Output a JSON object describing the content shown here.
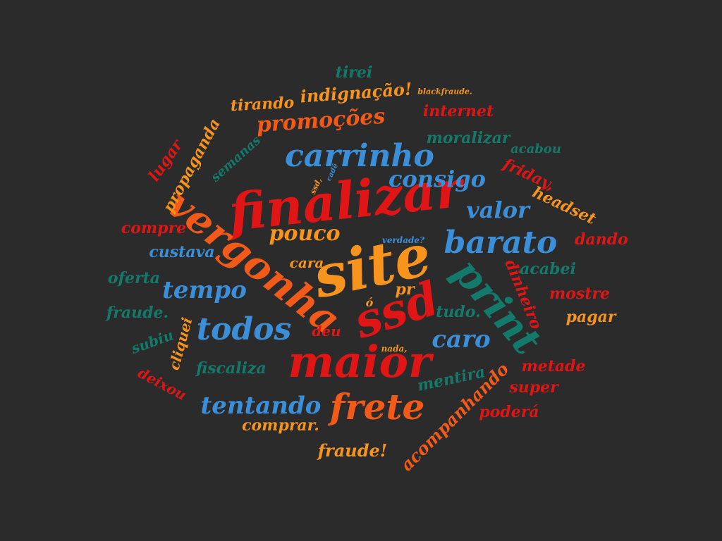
{
  "colors": {
    "background": "#2b2b2b",
    "red": "#e01515",
    "orange_red": "#f25a1a",
    "orange": "#f7941d",
    "blue": "#3b8fd9",
    "teal": "#137a6b"
  },
  "words": [
    {
      "text": "site",
      "color": "orange"
    },
    {
      "text": "finalizar",
      "color": "red"
    },
    {
      "text": "vergonha",
      "color": "orange_red"
    },
    {
      "text": "ssd",
      "color": "red"
    },
    {
      "text": "maior",
      "color": "red"
    },
    {
      "text": "print",
      "color": "teal"
    },
    {
      "text": "frete",
      "color": "orange_red"
    },
    {
      "text": "carrinho",
      "color": "blue"
    },
    {
      "text": "barato",
      "color": "blue"
    },
    {
      "text": "todos",
      "color": "blue"
    },
    {
      "text": "tentando",
      "color": "blue"
    },
    {
      "text": "promoções",
      "color": "orange_red"
    },
    {
      "text": "consigo",
      "color": "blue"
    },
    {
      "text": "valor",
      "color": "blue"
    },
    {
      "text": "tempo",
      "color": "blue"
    },
    {
      "text": "caro",
      "color": "blue"
    },
    {
      "text": "pouco",
      "color": "orange"
    },
    {
      "text": "indignação!",
      "color": "orange"
    },
    {
      "text": "tirando",
      "color": "orange"
    },
    {
      "text": "propaganda",
      "color": "orange"
    },
    {
      "text": "acompanhando",
      "color": "orange_red"
    },
    {
      "text": "dinheiro",
      "color": "red"
    },
    {
      "text": "comprar.",
      "color": "orange"
    },
    {
      "text": "fraude!",
      "color": "orange"
    },
    {
      "text": "fiscaliza",
      "color": "teal"
    },
    {
      "text": "mentira",
      "color": "teal"
    },
    {
      "text": "metade",
      "color": "red"
    },
    {
      "text": "internet",
      "color": "red"
    },
    {
      "text": "moralizar",
      "color": "teal"
    },
    {
      "text": "friday,",
      "color": "red"
    },
    {
      "text": "headset",
      "color": "orange"
    },
    {
      "text": "semanas",
      "color": "teal"
    },
    {
      "text": "lugar",
      "color": "red"
    },
    {
      "text": "compre",
      "color": "red"
    },
    {
      "text": "custava",
      "color": "blue"
    },
    {
      "text": "oferta",
      "color": "teal"
    },
    {
      "text": "fraude.",
      "color": "teal"
    },
    {
      "text": "subiu",
      "color": "teal"
    },
    {
      "text": "cliquei",
      "color": "orange"
    },
    {
      "text": "deixou",
      "color": "red"
    },
    {
      "text": "cara",
      "color": "orange"
    },
    {
      "text": "pr",
      "color": "orange"
    },
    {
      "text": "deu",
      "color": "red"
    },
    {
      "text": "nada,",
      "color": "orange"
    },
    {
      "text": "tudo.",
      "color": "teal"
    },
    {
      "text": "acabei",
      "color": "teal"
    },
    {
      "text": "mostre",
      "color": "red"
    },
    {
      "text": "pagar",
      "color": "orange"
    },
    {
      "text": "dando",
      "color": "red"
    },
    {
      "text": "acabou",
      "color": "teal"
    },
    {
      "text": "super",
      "color": "red"
    },
    {
      "text": "poderá",
      "color": "red"
    },
    {
      "text": "tirei",
      "color": "teal"
    },
    {
      "text": "blackfraude.",
      "color": "orange"
    },
    {
      "text": "verdade?",
      "color": "blue"
    },
    {
      "text": "ssd,",
      "color": "orange"
    },
    {
      "text": "cadê",
      "color": "blue"
    },
    {
      "text": "ó",
      "color": "orange"
    }
  ]
}
